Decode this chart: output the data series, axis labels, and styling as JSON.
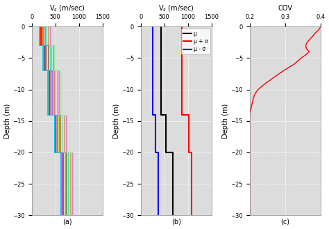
{
  "title_a": "V$_s$ (m/sec)",
  "title_b": "V$_s$ (m/sec)",
  "title_c": "COV",
  "label_a": "(a)",
  "label_b": "(b)",
  "label_c": "(c)",
  "ylabel": "Depth (m)",
  "xlim_a": [
    0,
    1500
  ],
  "xlim_b": [
    0,
    1500
  ],
  "xlim_c": [
    0.2,
    0.4
  ],
  "ylim": [
    -30,
    0
  ],
  "xticks_a": [
    0,
    500,
    1000,
    1500
  ],
  "xticks_b": [
    0,
    500,
    1000,
    1500
  ],
  "xticks_c": [
    0.2,
    0.3,
    0.4
  ],
  "yticks": [
    0,
    -5,
    -10,
    -15,
    -20,
    -25,
    -30
  ],
  "bg_color": "#dcdcdc",
  "grid_color": "white",
  "profiles_colors": [
    "#ff69b4",
    "#ff0000",
    "#ff8c00",
    "#ffd700",
    "#7fff00",
    "#00fa9a",
    "#00ced1",
    "#4169e1",
    "#9400d3",
    "#ff1493",
    "#32cd32",
    "#ff6347",
    "#00bfff",
    "#da70d6",
    "#7fffd4",
    "#daa520",
    "#808080",
    "#6495ed",
    "#ee82ee",
    "#90ee90"
  ],
  "profiles_base_vs": [
    [
      200,
      280,
      380,
      520,
      650
    ],
    [
      180,
      260,
      360,
      500,
      630
    ],
    [
      220,
      300,
      400,
      540,
      670
    ],
    [
      160,
      240,
      340,
      480,
      610
    ],
    [
      240,
      320,
      420,
      560,
      690
    ],
    [
      300,
      390,
      500,
      640,
      770
    ],
    [
      150,
      230,
      330,
      470,
      600
    ],
    [
      260,
      340,
      450,
      590,
      720
    ],
    [
      190,
      270,
      370,
      510,
      640
    ],
    [
      210,
      290,
      400,
      540,
      670
    ],
    [
      170,
      250,
      355,
      495,
      625
    ],
    [
      280,
      360,
      470,
      610,
      740
    ],
    [
      155,
      235,
      335,
      475,
      605
    ],
    [
      380,
      460,
      580,
      720,
      850
    ],
    [
      420,
      500,
      620,
      760,
      890
    ],
    [
      340,
      420,
      540,
      680,
      810
    ],
    [
      260,
      340,
      450,
      590,
      720
    ],
    [
      240,
      320,
      435,
      575,
      705
    ],
    [
      360,
      440,
      560,
      700,
      830
    ],
    [
      400,
      480,
      600,
      740,
      870
    ]
  ],
  "profiles_layer_depths": [
    0,
    -3,
    -7,
    -14,
    -20,
    -30
  ],
  "mu_vs": [
    430,
    430,
    530,
    530,
    680,
    680
  ],
  "mu_d": [
    0,
    -14,
    -14,
    -20,
    -20,
    -30
  ],
  "mu_plus_vs": [
    870,
    870,
    1020,
    1020,
    1080,
    1080
  ],
  "mu_plus_d": [
    0,
    -14,
    -14,
    -20,
    -20,
    -30
  ],
  "mu_minus_vs": [
    260,
    260,
    320,
    320,
    370,
    370
  ],
  "mu_minus_d": [
    0,
    -14,
    -14,
    -20,
    -20,
    -30
  ],
  "legend_labels": [
    "μ",
    "μ + σ",
    "μ - σ"
  ],
  "cov_d": [
    0,
    -0.5,
    -1,
    -1.5,
    -2,
    -2.5,
    -3,
    -3.5,
    -4,
    -4.5,
    -5,
    -5.5,
    -6,
    -6.5,
    -7,
    -7.5,
    -8,
    -8.5,
    -9,
    -9.5,
    -10,
    -10.5,
    -11,
    -11.5,
    -12,
    -12.5,
    -13,
    -13.5,
    -14,
    -14.5,
    -15,
    -16,
    -17,
    -18,
    -18.5,
    -19,
    -19.5,
    -20,
    -20.5,
    -21,
    -22,
    -23,
    -24,
    -25,
    -26,
    -27,
    -28,
    -29,
    -30
  ],
  "cov_v": [
    0.4,
    0.395,
    0.385,
    0.378,
    0.37,
    0.362,
    0.358,
    0.36,
    0.368,
    0.358,
    0.345,
    0.335,
    0.325,
    0.31,
    0.296,
    0.283,
    0.27,
    0.258,
    0.245,
    0.234,
    0.224,
    0.217,
    0.213,
    0.21,
    0.208,
    0.206,
    0.204,
    0.202,
    0.2,
    0.2,
    0.2,
    0.2,
    0.2,
    0.2,
    0.2,
    0.2,
    0.2,
    0.2,
    0.2,
    0.2,
    0.2,
    0.2,
    0.2,
    0.2,
    0.2,
    0.2,
    0.2,
    0.2,
    0.2
  ]
}
